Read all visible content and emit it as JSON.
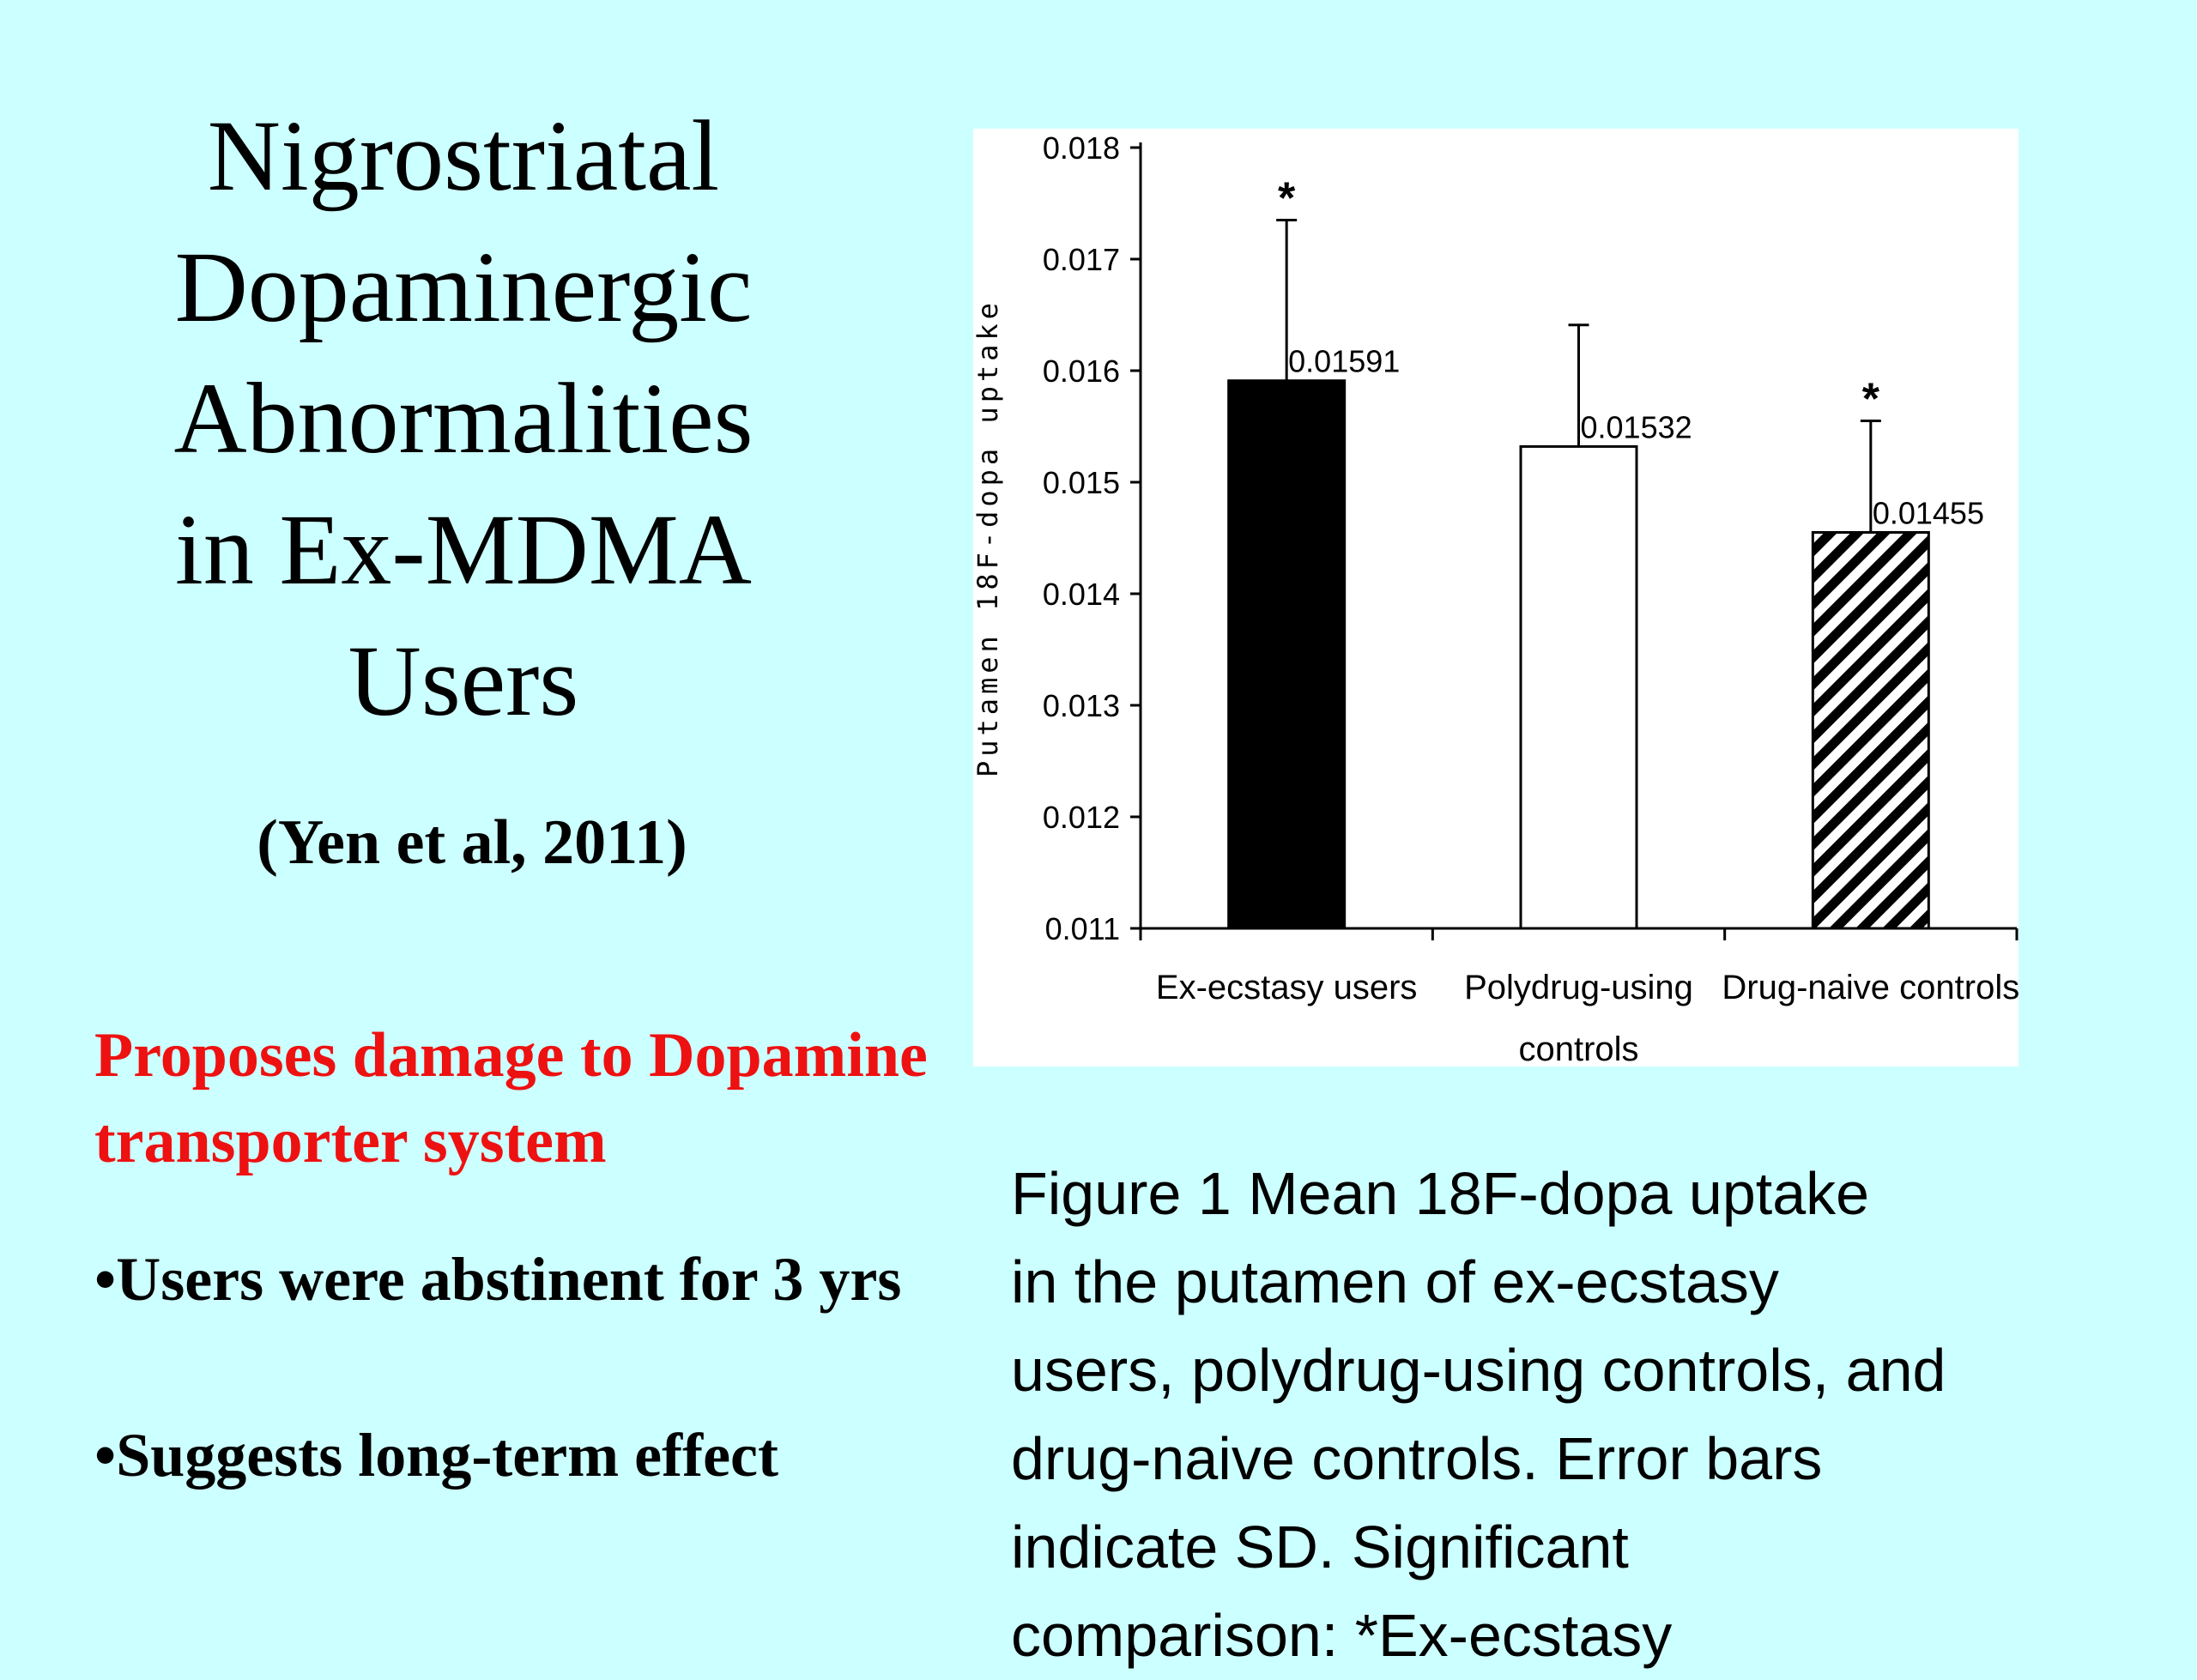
{
  "slide": {
    "title_lines": [
      "Nigrostriatal",
      "Dopaminergic",
      "Abnormalities",
      "in Ex-MDMA",
      "Users"
    ],
    "citation": "(Yen et al, 2011)",
    "proposal_lines": [
      "Proposes damage to Dopamine",
      "transporter system"
    ],
    "bullets": [
      "•Users were abstinent for 3 yrs",
      "•Suggests long-term effect"
    ],
    "caption_lines": [
      "Figure  1   Mean 18F-dopa  uptake",
      "in the putamen of ex-ecstasy",
      "users, polydrug-using controls, and",
      "drug-naive controls. Error bars",
      "indicate  SD. Significant",
      "comparison: *Ex-ecstasy"
    ],
    "colors": {
      "background": "#ccffff",
      "accent_red": "#ee1111"
    }
  },
  "chart_data": {
    "type": "bar",
    "ylabel": "Putamen 18F-dopa uptake",
    "ylim": [
      0.011,
      0.018
    ],
    "yticks": [
      "0.011",
      "0.012",
      "0.013",
      "0.014",
      "0.015",
      "0.016",
      "0.017",
      "0.018"
    ],
    "grid": false,
    "categories": [
      {
        "lines": [
          "Ex-ecstasy users"
        ]
      },
      {
        "lines": [
          "Polydrug-using",
          "controls"
        ]
      },
      {
        "lines": [
          "Drug-naive controls"
        ]
      }
    ],
    "values": [
      0.01591,
      0.01532,
      0.01455
    ],
    "value_labels": [
      "0.01591",
      "0.01532",
      "0.01455"
    ],
    "error_upper": [
      0.01735,
      0.01641,
      0.01555
    ],
    "significance": [
      "*",
      "",
      "*"
    ],
    "fills": [
      "solid-black",
      "white",
      "diagonal-hatch"
    ]
  }
}
